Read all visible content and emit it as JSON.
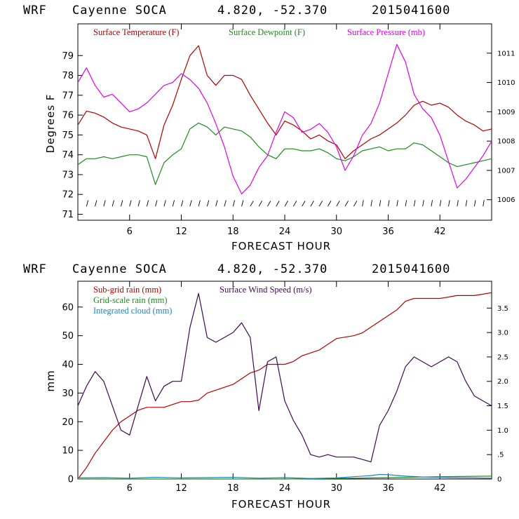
{
  "chart_data": [
    {
      "type": "line",
      "header": {
        "model": "WRF",
        "location": "Cayenne SOCA",
        "coords": "4.820, -52.370",
        "init": "2015041600"
      },
      "xlabel": "FORECAST HOUR",
      "ylabel": "Degrees F",
      "xlim": [
        0,
        48
      ],
      "xticks": [
        "6",
        "12",
        "18",
        "24",
        "30",
        "36",
        "42"
      ],
      "ylim_left": [
        70.7,
        80.6
      ],
      "yticks_left": [
        "71",
        "72",
        "73",
        "74",
        "75",
        "76",
        "77",
        "78",
        "79"
      ],
      "ylim_right": [
        1005.3,
        1012.0
      ],
      "yticks_right": [
        "1006",
        "1007",
        "1008",
        "1009",
        "1010",
        "1011"
      ],
      "series": [
        {
          "name": "Surface Temperature (F)",
          "color": "#b40000",
          "axis": "left",
          "x": [
            0,
            1,
            2,
            3,
            4,
            5,
            6,
            7,
            8,
            9,
            10,
            11,
            12,
            13,
            14,
            15,
            16,
            17,
            18,
            19,
            20,
            21,
            22,
            23,
            24,
            25,
            26,
            27,
            28,
            29,
            30,
            31,
            32,
            33,
            34,
            35,
            36,
            37,
            38,
            39,
            40,
            41,
            42,
            43,
            44,
            45,
            46,
            47,
            48
          ],
          "values": [
            75.5,
            76.2,
            76.1,
            75.9,
            75.6,
            75.4,
            75.3,
            75.2,
            75.0,
            73.8,
            75.5,
            76.5,
            77.8,
            79.0,
            79.5,
            78.0,
            77.5,
            78.0,
            78.0,
            77.8,
            77.0,
            76.3,
            75.6,
            75.0,
            75.7,
            75.5,
            75.2,
            74.8,
            75.0,
            74.7,
            74.5,
            73.8,
            74.2,
            74.5,
            74.8,
            75.0,
            75.3,
            75.6,
            76.0,
            76.5,
            76.7,
            76.5,
            76.6,
            76.4,
            76.0,
            75.7,
            75.5,
            75.2,
            75.3
          ]
        },
        {
          "name": "Surface Dewpoint (F)",
          "color": "#1e8c1e",
          "axis": "left",
          "x": [
            0,
            1,
            2,
            3,
            4,
            5,
            6,
            7,
            8,
            9,
            10,
            11,
            12,
            13,
            14,
            15,
            16,
            17,
            18,
            19,
            20,
            21,
            22,
            23,
            24,
            25,
            26,
            27,
            28,
            29,
            30,
            31,
            32,
            33,
            34,
            35,
            36,
            37,
            38,
            39,
            40,
            41,
            42,
            43,
            44,
            45,
            46,
            47,
            48
          ],
          "values": [
            73.5,
            73.8,
            73.8,
            73.9,
            73.8,
            73.9,
            74.0,
            74.0,
            73.9,
            72.5,
            73.6,
            74.0,
            74.3,
            75.3,
            75.6,
            75.4,
            75.0,
            75.4,
            75.3,
            75.2,
            74.9,
            74.4,
            74.0,
            73.8,
            74.3,
            74.3,
            74.2,
            74.2,
            74.3,
            74.1,
            73.8,
            73.7,
            73.9,
            74.2,
            74.3,
            74.4,
            74.2,
            74.3,
            74.3,
            74.6,
            74.5,
            74.2,
            73.9,
            73.6,
            73.4,
            73.5,
            73.6,
            73.7,
            73.8
          ]
        },
        {
          "name": "Surface Pressure (mb)",
          "color": "#e600e6",
          "axis": "right",
          "x": [
            0,
            1,
            2,
            3,
            4,
            5,
            6,
            7,
            8,
            9,
            10,
            11,
            12,
            13,
            14,
            15,
            16,
            17,
            18,
            19,
            20,
            21,
            22,
            23,
            24,
            25,
            26,
            27,
            28,
            29,
            30,
            31,
            32,
            33,
            34,
            35,
            36,
            37,
            38,
            39,
            40,
            41,
            42,
            43,
            44,
            45,
            46,
            47,
            48
          ],
          "values": [
            1010.0,
            1010.5,
            1009.9,
            1009.5,
            1009.6,
            1009.3,
            1009.0,
            1009.1,
            1009.3,
            1009.6,
            1009.9,
            1010.0,
            1010.3,
            1010.1,
            1009.8,
            1009.3,
            1008.6,
            1007.8,
            1006.8,
            1006.2,
            1006.5,
            1007.1,
            1007.5,
            1008.3,
            1009.0,
            1008.8,
            1008.3,
            1008.4,
            1008.6,
            1008.3,
            1007.8,
            1007.0,
            1007.5,
            1008.2,
            1008.6,
            1009.3,
            1010.3,
            1011.3,
            1010.7,
            1009.6,
            1009.1,
            1008.8,
            1008.2,
            1007.3,
            1006.4,
            1006.7,
            1007.1,
            1007.5,
            1008.0
          ]
        }
      ],
      "wind_barbs_row": 71.4
    },
    {
      "type": "line",
      "header": {
        "model": "WRF",
        "location": "Cayenne SOCA",
        "coords": "4.820, -52.370",
        "init": "2015041600"
      },
      "xlabel": "FORECAST HOUR",
      "ylabel": "mm",
      "xlim": [
        0,
        48
      ],
      "xticks": [
        "6",
        "12",
        "18",
        "24",
        "30",
        "36",
        "42"
      ],
      "ylim_left": [
        0,
        69
      ],
      "yticks_left": [
        "0",
        "10",
        "20",
        "30",
        "40",
        "50",
        "60"
      ],
      "ylim_right": [
        0,
        4.05
      ],
      "yticks_right": [
        "0",
        ".5",
        "1.0",
        "1.5",
        "2.0",
        "2.5",
        "3.0",
        "3.5"
      ],
      "series": [
        {
          "name": "Sub-grid rain (mm)",
          "color": "#b40000",
          "axis": "left",
          "x": [
            0,
            1,
            2,
            3,
            4,
            5,
            6,
            7,
            8,
            9,
            10,
            11,
            12,
            13,
            14,
            15,
            16,
            17,
            18,
            19,
            20,
            21,
            22,
            23,
            24,
            25,
            26,
            27,
            28,
            29,
            30,
            31,
            32,
            33,
            34,
            35,
            36,
            37,
            38,
            39,
            40,
            41,
            42,
            43,
            44,
            45,
            46,
            47,
            48
          ],
          "values": [
            0,
            4,
            9,
            13,
            17,
            20,
            22,
            24,
            25,
            25,
            25,
            26,
            27,
            27,
            27.5,
            30,
            31,
            32,
            33,
            35,
            37,
            38,
            40,
            40,
            40,
            41,
            43,
            44,
            45,
            47,
            49,
            49.5,
            50,
            51,
            53,
            55,
            57,
            59,
            62,
            63,
            63,
            63,
            63,
            63.5,
            64,
            64,
            64,
            64.5,
            65
          ]
        },
        {
          "name": "Grid-scale rain (mm)",
          "color": "#1e8c1e",
          "axis": "left",
          "x": [
            0,
            6,
            12,
            18,
            24,
            30,
            36,
            42,
            48
          ],
          "values": [
            0,
            0,
            0,
            0,
            0,
            0.2,
            0.5,
            0.8,
            1
          ]
        },
        {
          "name": "Integrated cloud (mm)",
          "color": "#1e82c8",
          "axis": "left",
          "x": [
            0,
            3,
            6,
            9,
            12,
            15,
            18,
            21,
            24,
            27,
            30,
            32,
            34,
            35,
            36,
            38,
            40,
            43,
            46,
            48
          ],
          "values": [
            0.4,
            0.5,
            0.3,
            0.6,
            0.4,
            0.5,
            0.6,
            0.3,
            0.5,
            0.2,
            0.4,
            0.8,
            1.2,
            1.6,
            1.5,
            1.0,
            0.7,
            0.5,
            0.4,
            0.3
          ]
        },
        {
          "name": "Surface Wind Speed (m/s)",
          "color": "#3c0a50",
          "axis": "right",
          "x": [
            0,
            1,
            2,
            3,
            4,
            5,
            6,
            7,
            8,
            9,
            10,
            11,
            12,
            13,
            14,
            15,
            16,
            17,
            18,
            19,
            20,
            21,
            22,
            23,
            24,
            25,
            26,
            27,
            28,
            29,
            30,
            31,
            32,
            33,
            34,
            35,
            36,
            37,
            38,
            39,
            40,
            41,
            42,
            43,
            44,
            45,
            46,
            47,
            48
          ],
          "values": [
            1.5,
            1.9,
            2.2,
            2.0,
            1.5,
            1.0,
            0.9,
            1.5,
            2.1,
            1.6,
            1.9,
            2.0,
            2.0,
            3.1,
            3.8,
            2.9,
            2.8,
            2.9,
            3.0,
            3.2,
            2.9,
            1.4,
            2.4,
            2.5,
            1.6,
            1.2,
            0.9,
            0.5,
            0.45,
            0.5,
            0.45,
            0.45,
            0.45,
            0.4,
            0.35,
            1.1,
            1.4,
            1.8,
            2.3,
            2.5,
            2.4,
            2.3,
            2.4,
            2.5,
            2.4,
            2.0,
            1.7,
            1.6,
            1.5
          ]
        }
      ]
    }
  ]
}
